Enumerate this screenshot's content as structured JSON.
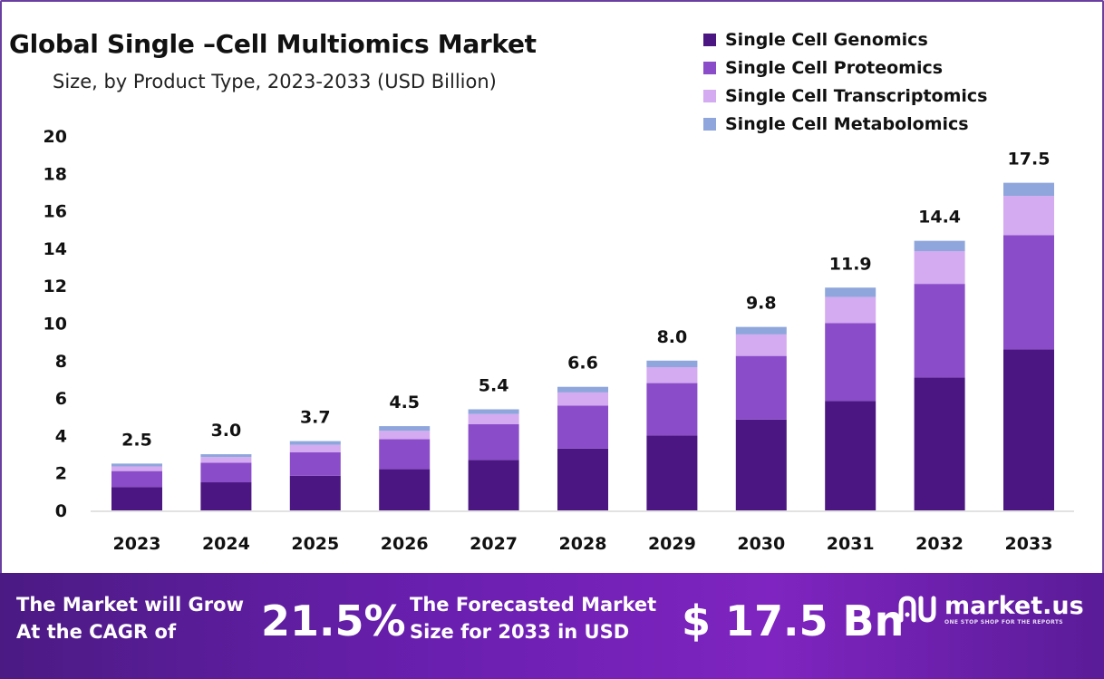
{
  "header": {
    "title": "Global Single –Cell Multiomics Market",
    "subtitle": "Size, by Product Type, 2023-2033 (USD Billion)"
  },
  "chart_data": {
    "type": "bar",
    "stacked": true,
    "title": "Global Single –Cell Multiomics Market",
    "subtitle": "Size, by Product Type, 2023-2033 (USD Billion)",
    "categories": [
      "2023",
      "2024",
      "2025",
      "2026",
      "2027",
      "2028",
      "2029",
      "2030",
      "2031",
      "2032",
      "2033"
    ],
    "series": [
      {
        "name": "Single Cell Genomics",
        "color": "#4b1682",
        "values": [
          1.25,
          1.5,
          1.85,
          2.2,
          2.7,
          3.3,
          4.0,
          4.85,
          5.85,
          7.1,
          8.6
        ]
      },
      {
        "name": "Single Cell Proteomics",
        "color": "#8a4cc9",
        "values": [
          0.85,
          1.05,
          1.25,
          1.6,
          1.9,
          2.3,
          2.8,
          3.4,
          4.15,
          5.0,
          6.1
        ]
      },
      {
        "name": "Single Cell Transcriptomics",
        "color": "#d4aaf0",
        "values": [
          0.25,
          0.3,
          0.4,
          0.45,
          0.55,
          0.7,
          0.85,
          1.15,
          1.4,
          1.75,
          2.1
        ]
      },
      {
        "name": "Single Cell Metabolomics",
        "color": "#8fa6dc",
        "values": [
          0.15,
          0.15,
          0.2,
          0.25,
          0.25,
          0.3,
          0.35,
          0.4,
          0.5,
          0.55,
          0.7
        ]
      }
    ],
    "totals": [
      "2.5",
      "3.0",
      "3.7",
      "4.5",
      "5.4",
      "6.6",
      "8.0",
      "9.8",
      "11.9",
      "14.4",
      "17.5"
    ],
    "yticks": [
      "0",
      "2",
      "4",
      "6",
      "8",
      "10",
      "12",
      "14",
      "16",
      "18",
      "20"
    ],
    "ylim": [
      0,
      20
    ],
    "xlabel": "",
    "ylabel": "",
    "grid": false,
    "legend": "top-right"
  },
  "banner": {
    "cagr_label_line1": "The Market will Grow",
    "cagr_label_line2": "At the CAGR of",
    "cagr_value": "21.5%",
    "forecast_label_line1": "The Forecasted Market",
    "forecast_label_line2": "Size for 2033 in USD",
    "forecast_value": "$ 17.5 Bn",
    "logo_name": "market.us",
    "logo_tagline": "ONE STOP SHOP FOR THE REPORTS"
  }
}
